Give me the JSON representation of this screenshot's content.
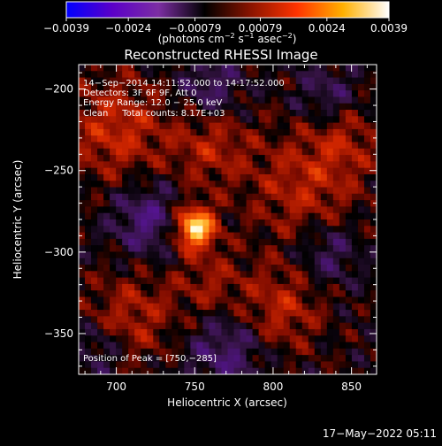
{
  "chart_data": {
    "type": "heatmap",
    "title": "Reconstructed RHESSI Image",
    "xlabel": "Heliocentric X (arcsec)",
    "ylabel": "Heliocentric Y (arcsec)",
    "xlim": [
      676,
      866
    ],
    "ylim": [
      -375,
      -185
    ],
    "xticks": [
      {
        "value": 700,
        "label": "700"
      },
      {
        "value": 750,
        "label": "750"
      },
      {
        "value": 800,
        "label": "800"
      },
      {
        "value": 850,
        "label": "850"
      }
    ],
    "yticks": [
      {
        "value": -200,
        "label": "−200"
      },
      {
        "value": -250,
        "label": "−250"
      },
      {
        "value": -300,
        "label": "−300"
      },
      {
        "value": -350,
        "label": "−350"
      }
    ],
    "peak": {
      "x": 750,
      "y": -285
    },
    "colorbar": {
      "range": [
        -0.0039,
        0.0039
      ],
      "ticks": [
        {
          "value": -0.0039,
          "label": "−0.0039"
        },
        {
          "value": -0.0024,
          "label": "−0.0024"
        },
        {
          "value": -0.00079,
          "label": "−0.00079"
        },
        {
          "value": 0.00079,
          "label": "0.00079"
        },
        {
          "value": 0.0024,
          "label": "0.0024"
        },
        {
          "value": 0.0039,
          "label": "0.0039"
        }
      ],
      "units_prefix": "(photons cm",
      "units_exp1": "−2",
      "units_mid": " s",
      "units_exp2": "−1",
      "units_mid2": " asec",
      "units_exp3": "−2",
      "units_suffix": ")",
      "colors": [
        "#0000ff",
        "#5b00c8",
        "#7c2ea3",
        "#000000",
        "#8a1400",
        "#ff3300",
        "#ffb000",
        "#ffffff"
      ]
    },
    "annotations": {
      "time": "14−Sep−2014 14:11:52.000 to 14:17:52.000",
      "detectors": "Detectors: 3F 6F 9F, Att 0",
      "energy": "Energy Range: 12.0 − 25.0 keV",
      "clean": "Clean     Total counts: 8.17E+03",
      "peak_label": "Position of Peak = [750,−285]"
    },
    "grid": false
  },
  "footer": {
    "datetime": "17−May−2022 05:11"
  }
}
